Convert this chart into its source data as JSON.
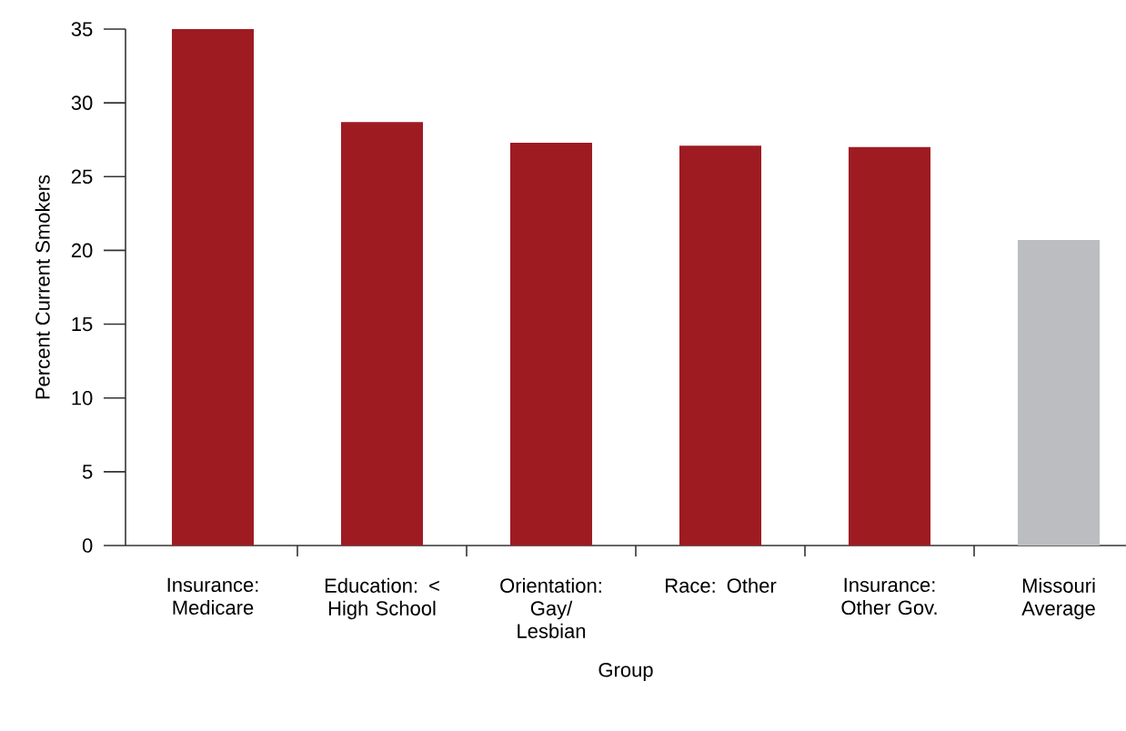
{
  "chart_data": {
    "type": "bar",
    "xlabel": "Group",
    "ylabel": "Percent Current Smokers",
    "categories": [
      "Insurance: Medicare",
      "Education: < High School",
      "Orientation: Gay/ Lesbian",
      "Race: Other",
      "Insurance: Other Gov.",
      "Missouri Average"
    ],
    "values": [
      35.0,
      28.7,
      27.3,
      27.1,
      27.0,
      20.7
    ],
    "colors": [
      "#9e1b22",
      "#9e1b22",
      "#9e1b22",
      "#9e1b22",
      "#9e1b22",
      "#bcbdc1"
    ],
    "ylim": [
      0,
      35
    ],
    "yticks": [
      0,
      5,
      10,
      15,
      20,
      25,
      30,
      35
    ],
    "grid": false
  }
}
